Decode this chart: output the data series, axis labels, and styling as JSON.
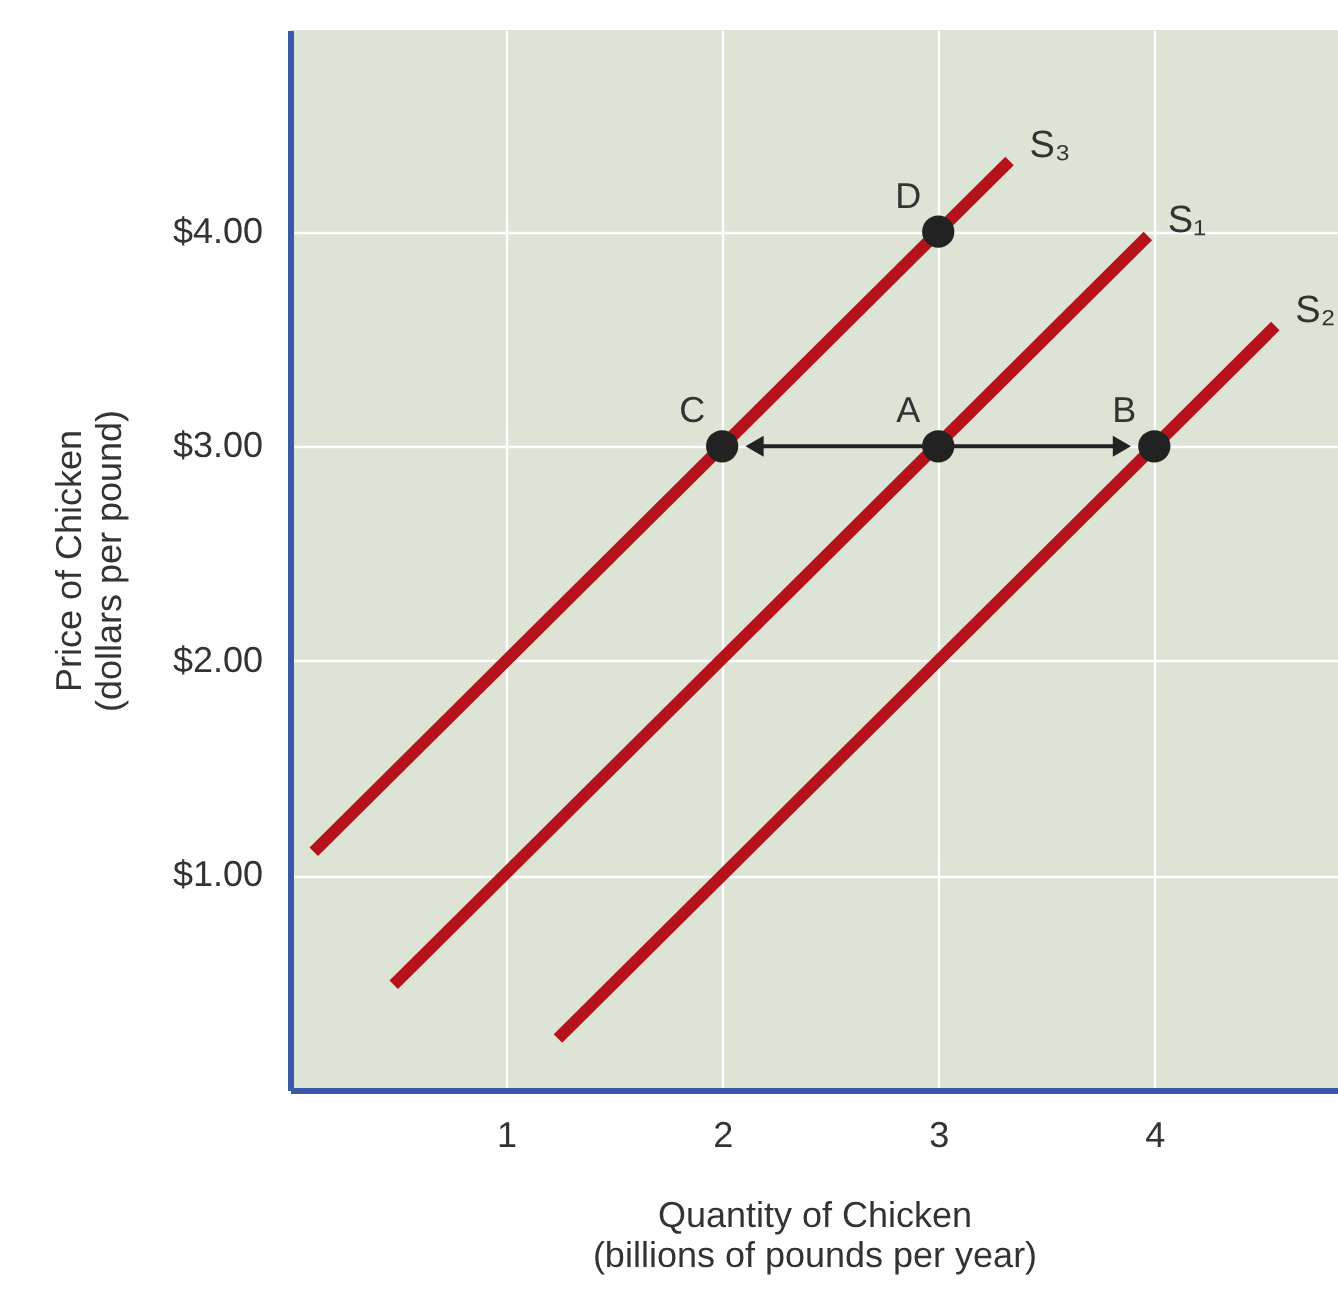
{
  "chart_data": {
    "type": "line",
    "xlabel": "Quantity of Chicken\n(billions of pounds per year)",
    "ylabel": "Price of Chicken\n(dollars per pound)",
    "xlim": [
      0,
      4.85
    ],
    "ylim": [
      0,
      4.94
    ],
    "xticks": [
      1,
      2,
      3,
      4
    ],
    "yticks": [
      {
        "value": 1,
        "label": "$1.00"
      },
      {
        "value": 2,
        "label": "$2.00"
      },
      {
        "value": 3,
        "label": "$3.00"
      },
      {
        "value": 4,
        "label": "$4.00"
      }
    ],
    "grid": true,
    "series": [
      {
        "name": "S₃",
        "color": "#b5121b",
        "x": [
          0.11,
          3.33
        ],
        "values": [
          1.11,
          4.33
        ]
      },
      {
        "name": "S₁",
        "color": "#b5121b",
        "x": [
          0.48,
          3.97
        ],
        "values": [
          0.49,
          3.98
        ]
      },
      {
        "name": "S₂",
        "color": "#b5121b",
        "x": [
          1.24,
          4.56
        ],
        "values": [
          0.24,
          3.56
        ]
      },
      {
        "type": "line",
        "color": "#222222",
        "x": [
          2.15,
          3.85
        ],
        "values": [
          3,
          3
        ],
        "marker": "triangle"
      },
      {
        "type": "scatter",
        "color": "#222222",
        "x": [
          2,
          3,
          4,
          3
        ],
        "values": [
          3,
          3,
          3,
          4
        ],
        "marker": "circle"
      }
    ],
    "annotations": [
      {
        "text": "C",
        "x": 2,
        "y": 3
      },
      {
        "text": "A",
        "x": 3,
        "y": 3
      },
      {
        "text": "B",
        "x": 4,
        "y": 3
      },
      {
        "text": "D",
        "x": 3,
        "y": 4
      }
    ]
  }
}
